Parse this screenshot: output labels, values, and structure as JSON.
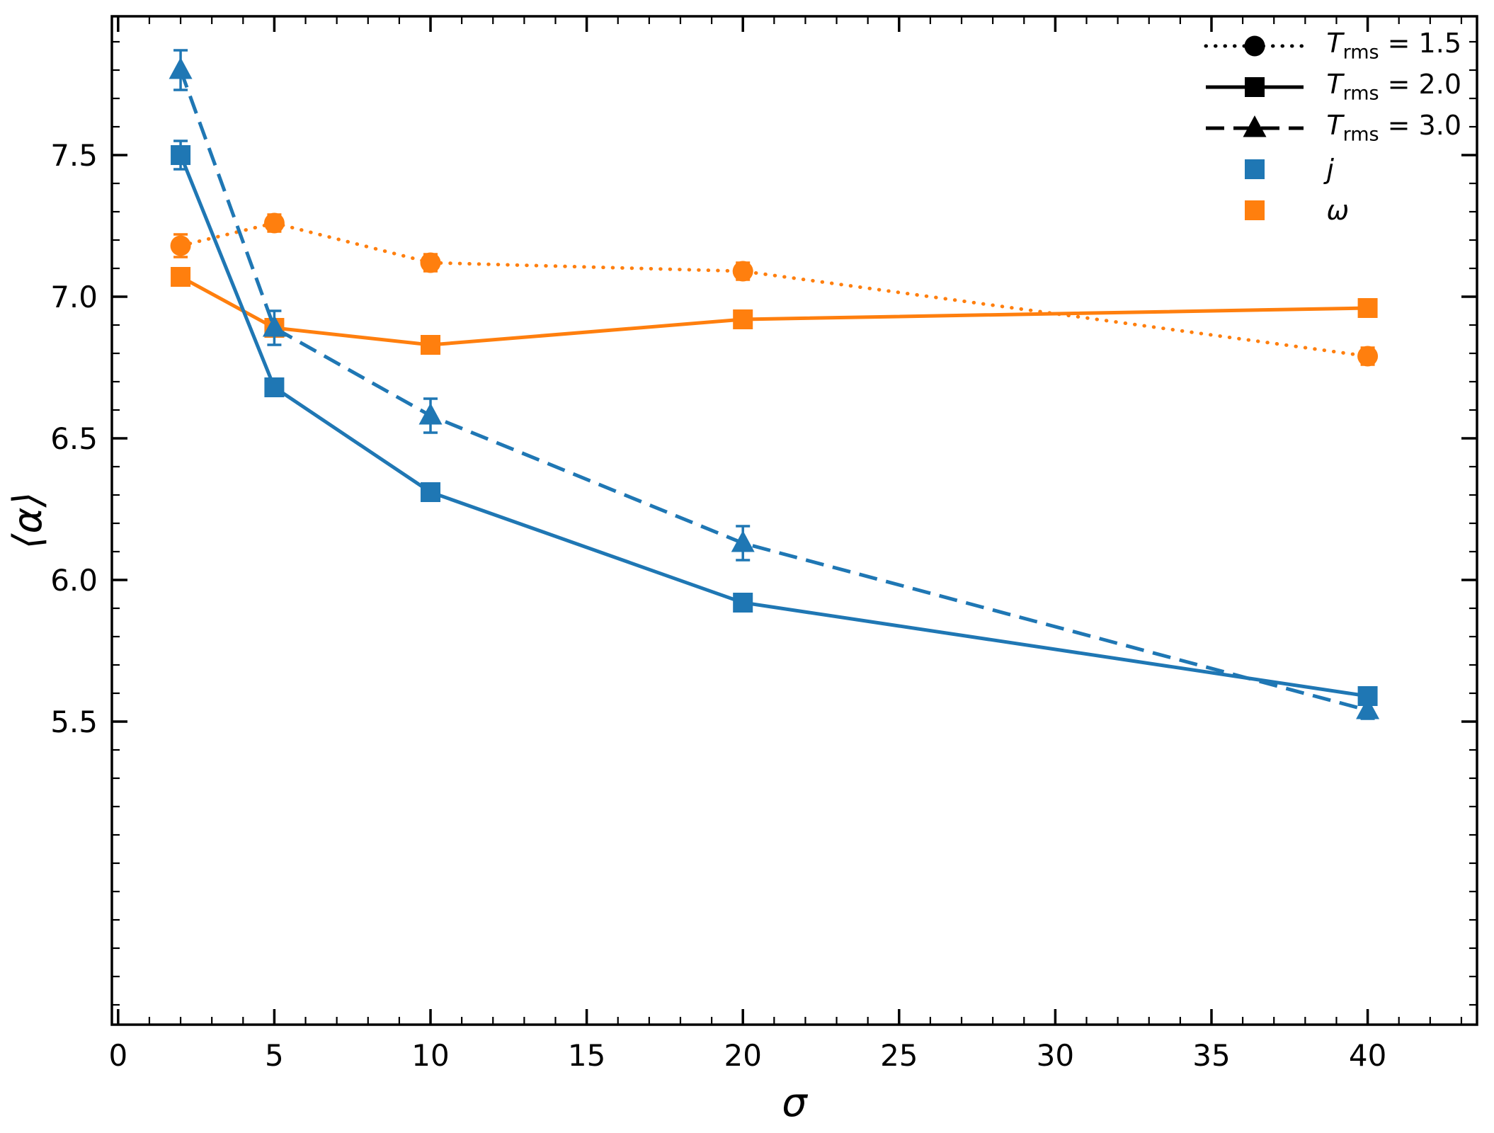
{
  "figure": {
    "background": "#ffffff"
  },
  "chart_data": {
    "type": "line",
    "title": "",
    "xlabel": "σ",
    "ylabel": "⟨α⟩",
    "xlim": [
      -0.2,
      43.5
    ],
    "ylim": [
      4.43,
      7.99
    ],
    "xticks": [
      0,
      5,
      10,
      15,
      20,
      25,
      30,
      35,
      40
    ],
    "yticks": [
      5.5,
      6.0,
      6.5,
      7.0,
      7.5
    ],
    "x_minor_step": 1,
    "y_minor_step": 0.1,
    "grid": false,
    "legend_position": "upper right",
    "colors": {
      "j": "#1f77b4",
      "omega": "#ff7f0e"
    },
    "series": [
      {
        "name": "omega-trms-1.5",
        "quantity": "ω",
        "t_rms": 1.5,
        "color": "#ff7f0e",
        "linestyle": "dotted",
        "marker": "circle",
        "x": [
          2,
          5,
          10,
          20,
          40
        ],
        "y": [
          7.18,
          7.26,
          7.12,
          7.09,
          6.79
        ],
        "yerr": [
          0.04,
          0.03,
          0.03,
          0.03,
          0.03
        ]
      },
      {
        "name": "omega-trms-2.0",
        "quantity": "ω",
        "t_rms": 2.0,
        "color": "#ff7f0e",
        "linestyle": "solid",
        "marker": "square",
        "x": [
          2,
          5,
          10,
          20,
          40
        ],
        "y": [
          7.07,
          6.89,
          6.83,
          6.92,
          6.96
        ],
        "yerr": [
          0.03,
          0.03,
          0.02,
          0.03,
          0.02
        ]
      },
      {
        "name": "j-trms-3.0",
        "quantity": "j",
        "t_rms": 3.0,
        "color": "#1f77b4",
        "linestyle": "dashed",
        "marker": "triangle",
        "x": [
          2,
          5,
          10,
          20,
          40
        ],
        "y": [
          7.8,
          6.89,
          6.58,
          6.13,
          5.54
        ],
        "yerr": [
          0.07,
          0.06,
          0.06,
          0.06,
          0.03
        ]
      },
      {
        "name": "j-trms-2.0",
        "quantity": "j",
        "t_rms": 2.0,
        "color": "#1f77b4",
        "linestyle": "solid",
        "marker": "square",
        "x": [
          2,
          5,
          10,
          20,
          40
        ],
        "y": [
          7.5,
          6.68,
          6.31,
          5.92,
          5.59
        ],
        "yerr": [
          0.05,
          0.03,
          0.025,
          0.025,
          0.02
        ]
      }
    ],
    "legend": [
      {
        "name": "trms-1.5",
        "label": "T_rms = 1.5",
        "handle": "line",
        "linestyle": "dotted",
        "marker": "circle",
        "color": "#000000"
      },
      {
        "name": "trms-2.0",
        "label": "T_rms = 2.0",
        "handle": "line",
        "linestyle": "solid",
        "marker": "square",
        "color": "#000000"
      },
      {
        "name": "trms-3.0",
        "label": "T_rms = 3.0",
        "handle": "line",
        "linestyle": "dashed",
        "marker": "triangle",
        "color": "#000000"
      },
      {
        "name": "j",
        "label": "j",
        "handle": "marker",
        "marker": "square",
        "color": "#1f77b4"
      },
      {
        "name": "omega",
        "label": "ω",
        "handle": "marker",
        "marker": "square",
        "color": "#ff7f0e"
      }
    ]
  }
}
